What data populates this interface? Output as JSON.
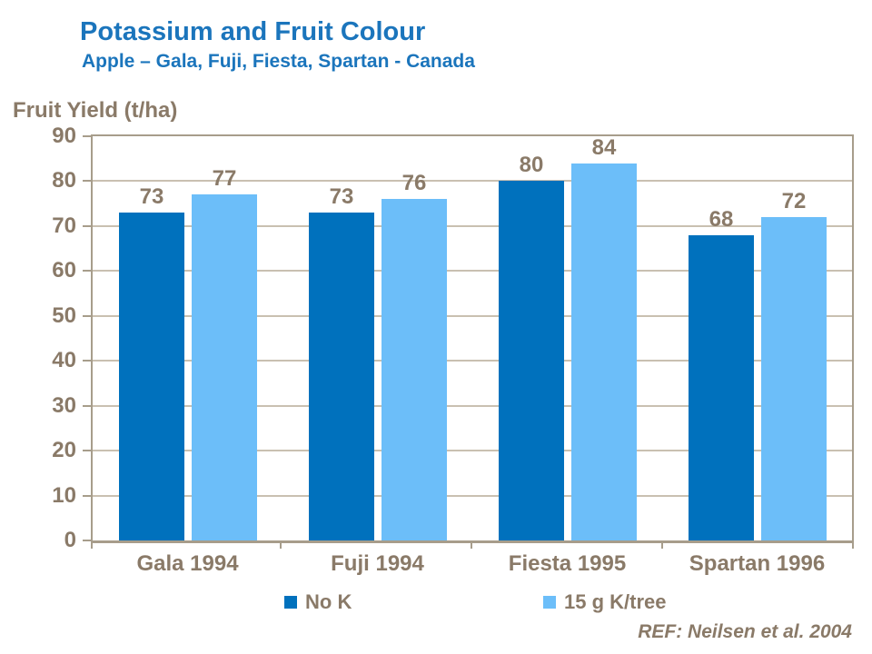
{
  "chart_data": {
    "type": "bar",
    "title": "Potassium and Fruit Colour",
    "subtitle": "Apple – Gala, Fuji, Fiesta, Spartan - Canada",
    "ylabel": "Fruit Yield (t/ha)",
    "categories": [
      "Gala 1994",
      "Fuji 1994",
      "Fiesta 1995",
      "Spartan 1996"
    ],
    "series": [
      {
        "name": "No K",
        "color": "#0071BD",
        "values": [
          73,
          73,
          80,
          68
        ]
      },
      {
        "name": "15 g K/tree",
        "color": "#6CBEF9",
        "values": [
          77,
          76,
          84,
          72
        ]
      }
    ],
    "ylim": [
      0,
      90
    ],
    "ytick_step": 10,
    "grid": true,
    "legend_position": "bottom",
    "value_labels": [
      [
        73,
        73,
        80,
        68
      ],
      [
        77,
        76,
        84,
        72
      ]
    ]
  },
  "footer": {
    "ref": "REF: Neilsen et al. 2004"
  },
  "colors": {
    "title": "#1B75BC",
    "text": "#8A7A68",
    "grid": "#C9C0B1",
    "axis": "#A79D8B",
    "background": "#FFFFFF"
  }
}
